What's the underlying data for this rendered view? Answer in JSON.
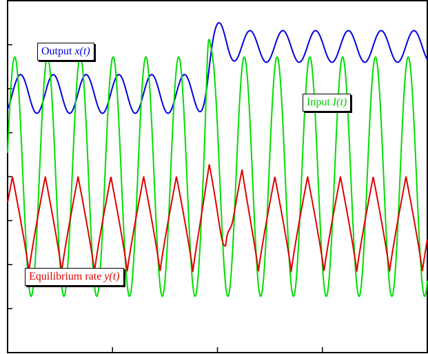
{
  "chart_data": {
    "type": "line",
    "title": "",
    "xlabel": "",
    "ylabel": "",
    "xlim": [
      0,
      1
    ],
    "ylim": [
      0,
      1
    ],
    "x_ticks_shown": true,
    "y_ticks_shown": true,
    "tick_labels_shown": false,
    "grid": false,
    "legend_placement": "inline-labels",
    "series": [
      {
        "label_text": "Output ",
        "label_var": "x(t)",
        "color": "#0000dd",
        "form": "sinusoid-with-step",
        "cycles": 12.8,
        "base_before": 0.735,
        "amp_before": 0.055,
        "base_after": 0.87,
        "amp_after": 0.045,
        "step_at": 0.48
      },
      {
        "label_text": "Input ",
        "label_var": "I(t)",
        "color": "#00dd00",
        "form": "sinusoid-with-pulse",
        "cycles": 12.8,
        "base": 0.5,
        "amp": 0.34,
        "pulse_at": 0.48,
        "pulse_peak": 0.89
      },
      {
        "label_text": "Equilibrium rate ",
        "label_var": "y(t)",
        "color": "#dd0000",
        "form": "triangle-with-bump",
        "cycles": 12.8,
        "low": 0.23,
        "high": 0.5,
        "bump_at": 0.48,
        "bump_high": 0.55,
        "bump_low": 0.38
      }
    ]
  }
}
